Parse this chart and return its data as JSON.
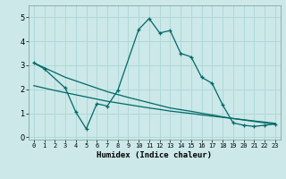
{
  "title": "",
  "xlabel": "Humidex (Indice chaleur)",
  "ylabel": "",
  "bg_color": "#cce8e8",
  "line_color": "#006868",
  "grid_color": "#b0d8d8",
  "xlim": [
    -0.5,
    23.5
  ],
  "ylim": [
    -0.1,
    5.5
  ],
  "xticks": [
    0,
    1,
    2,
    3,
    4,
    5,
    6,
    7,
    8,
    9,
    10,
    11,
    12,
    13,
    14,
    15,
    16,
    17,
    18,
    19,
    20,
    21,
    22,
    23
  ],
  "yticks": [
    0,
    1,
    2,
    3,
    4,
    5
  ],
  "line1_x": [
    0,
    1,
    2,
    3,
    4,
    5,
    6,
    7,
    8,
    9,
    10,
    11,
    12,
    13,
    14,
    15,
    16,
    17,
    18,
    19,
    20,
    21,
    22,
    23
  ],
  "line1_y": [
    3.1,
    2.9,
    2.7,
    2.5,
    2.35,
    2.2,
    2.05,
    1.9,
    1.78,
    1.66,
    1.55,
    1.44,
    1.33,
    1.22,
    1.15,
    1.08,
    1.0,
    0.93,
    0.85,
    0.78,
    0.72,
    0.66,
    0.6,
    0.55
  ],
  "line2_x": [
    0,
    1,
    2,
    3,
    4,
    5,
    6,
    7,
    8,
    9,
    10,
    11,
    12,
    13,
    14,
    15,
    16,
    17,
    18,
    19,
    20,
    21,
    22,
    23
  ],
  "line2_y": [
    2.15,
    2.05,
    1.95,
    1.86,
    1.77,
    1.68,
    1.59,
    1.5,
    1.43,
    1.36,
    1.29,
    1.22,
    1.16,
    1.09,
    1.04,
    0.99,
    0.93,
    0.88,
    0.83,
    0.78,
    0.73,
    0.68,
    0.63,
    0.58
  ],
  "line3_x": [
    0,
    1,
    3,
    4,
    5,
    6,
    7,
    8,
    10,
    11,
    12,
    13,
    14,
    15,
    16,
    17,
    18,
    19,
    20,
    21,
    22,
    23
  ],
  "line3_y": [
    3.1,
    2.85,
    2.05,
    1.05,
    0.35,
    1.4,
    1.3,
    1.95,
    4.5,
    4.95,
    4.35,
    4.45,
    3.5,
    3.35,
    2.5,
    2.25,
    1.35,
    0.6,
    0.5,
    0.45,
    0.5,
    0.55
  ]
}
